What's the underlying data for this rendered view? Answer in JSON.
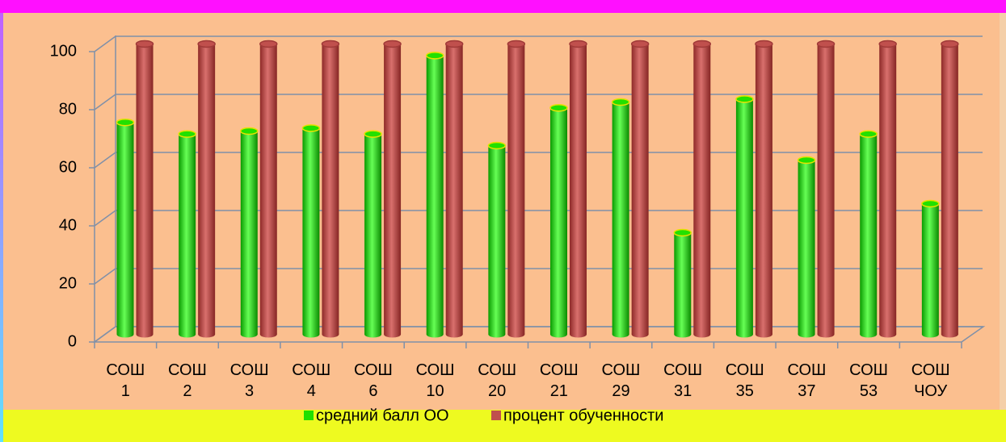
{
  "chart_data": {
    "type": "bar3d",
    "categories": [
      "СОШ 1",
      "СОШ 2",
      "СОШ 3",
      "СОШ 4",
      "СОШ 6",
      "СОШ 10",
      "СОШ 20",
      "СОШ 21",
      "СОШ 29",
      "СОШ 31",
      "СОШ 35",
      "СОШ 37",
      "СОШ 53",
      "СОШ ЧОУ"
    ],
    "series": [
      {
        "name": "средний балл ОО",
        "color": "#22e000",
        "values": [
          73,
          69,
          70,
          71,
          69,
          96,
          65,
          78,
          80,
          35,
          81,
          60,
          69,
          45
        ]
      },
      {
        "name": "процент обученности",
        "color": "#c0504d",
        "values": [
          100,
          100,
          100,
          100,
          100,
          100,
          100,
          100,
          100,
          100,
          100,
          100,
          100,
          100
        ]
      }
    ],
    "ylim": [
      0,
      100
    ],
    "yticks": [
      0,
      20,
      40,
      60,
      80,
      100
    ],
    "grid": true,
    "legend": "bottom"
  }
}
